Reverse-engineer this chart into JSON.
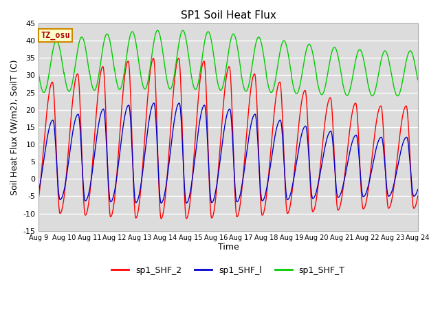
{
  "title": "SP1 Soil Heat Flux",
  "xlabel": "Time",
  "ylabel": "Soil Heat Flux (W/m2), SoilT (C)",
  "ylim": [
    -15,
    45
  ],
  "yticks": [
    -15,
    -10,
    -5,
    0,
    5,
    10,
    15,
    20,
    25,
    30,
    35,
    40,
    45
  ],
  "x_tick_labels": [
    "Aug 9",
    "Aug 10",
    "Aug 11",
    "Aug 12",
    "Aug 13",
    "Aug 14",
    "Aug 15",
    "Aug 16",
    "Aug 17",
    "Aug 18",
    "Aug 19",
    "Aug 20",
    "Aug 21",
    "Aug 22",
    "Aug 23",
    "Aug 24"
  ],
  "bg_color": "#dcdcdc",
  "line_color_shf2": "#ff0000",
  "line_color_shf1": "#0000cc",
  "line_color_shfT": "#00cc00",
  "legend_labels": [
    "sp1_SHF_2",
    "sp1_SHF_l",
    "sp1_SHF_T"
  ],
  "tz_label": "TZ_osu",
  "tz_box_facecolor": "#ffffcc",
  "tz_box_edgecolor": "#cc8800",
  "title_fontsize": 11,
  "axis_label_fontsize": 9,
  "tick_fontsize": 8
}
